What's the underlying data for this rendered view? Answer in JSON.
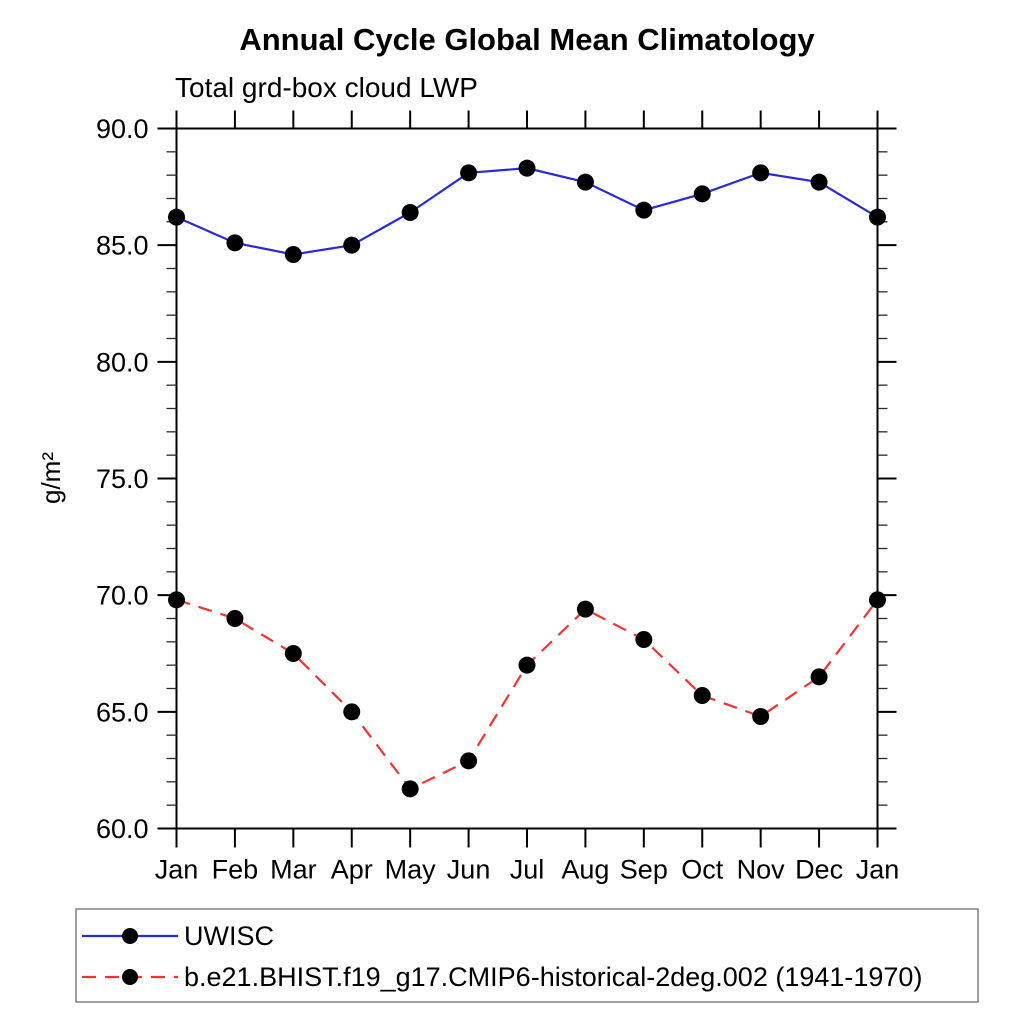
{
  "chart_data": {
    "type": "line",
    "title": "Annual Cycle Global Mean Climatology",
    "subtitle": "Total grd-box cloud LWP",
    "ylabel": "g/m²",
    "xlabel": "",
    "categories": [
      "Jan",
      "Feb",
      "Mar",
      "Apr",
      "May",
      "Jun",
      "Jul",
      "Aug",
      "Sep",
      "Oct",
      "Nov",
      "Dec",
      "Jan"
    ],
    "series": [
      {
        "name": "UWISC",
        "color": "#2a2ad4",
        "line_style": "solid",
        "marker": "filled-circle",
        "marker_color": "#000000",
        "values": [
          86.2,
          85.1,
          84.6,
          85.0,
          86.4,
          88.1,
          88.3,
          87.7,
          86.5,
          87.2,
          88.1,
          87.7,
          86.2
        ]
      },
      {
        "name": "b.e21.BHIST.f19_g17.CMIP6-historical-2deg.002 (1941-1970)",
        "color": "#ef3434",
        "line_style": "dashed",
        "marker": "filled-circle",
        "marker_color": "#000000",
        "values": [
          69.8,
          69.0,
          67.5,
          65.0,
          61.7,
          62.9,
          67.0,
          69.4,
          68.1,
          65.7,
          64.8,
          66.5,
          69.8
        ]
      }
    ],
    "ylim": [
      60,
      90
    ],
    "ytick_major_interval": 5,
    "ytick_minor_interval": 1,
    "ytick_labels": [
      "60.0",
      "65.0",
      "70.0",
      "75.0",
      "80.0",
      "85.0",
      "90.0"
    ],
    "grid": false,
    "legend_position": "bottom-left-box"
  }
}
